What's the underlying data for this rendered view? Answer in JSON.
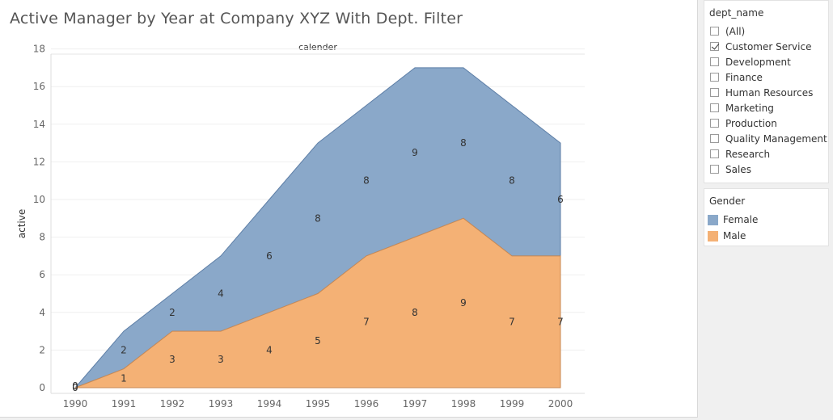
{
  "title": "Active Manager by Year at Company XYZ With Dept. Filter",
  "colors": {
    "female": "#8aa8c9",
    "female_line": "#5d7ea6",
    "male": "#f4b175",
    "male_line": "#c98a55"
  },
  "chart_data": {
    "type": "area",
    "stacked": true,
    "top_label": "calender",
    "ylabel": "active",
    "xlabel": "",
    "ylim": [
      0,
      18
    ],
    "yticks": [
      0,
      2,
      4,
      6,
      8,
      10,
      12,
      14,
      16,
      18
    ],
    "x": [
      1990,
      1991,
      1992,
      1993,
      1994,
      1995,
      1996,
      1997,
      1998,
      1999,
      2000
    ],
    "series": [
      {
        "name": "Male",
        "values": [
          0,
          1,
          3,
          3,
          4,
          5,
          7,
          8,
          9,
          7,
          7
        ]
      },
      {
        "name": "Female",
        "values": [
          0,
          2,
          2,
          4,
          6,
          8,
          8,
          9,
          8,
          8,
          6
        ]
      }
    ],
    "grid": true
  },
  "filter": {
    "title": "dept_name",
    "options": [
      {
        "label": "(All)",
        "checked": false
      },
      {
        "label": "Customer Service",
        "checked": true
      },
      {
        "label": "Development",
        "checked": false
      },
      {
        "label": "Finance",
        "checked": false
      },
      {
        "label": "Human Resources",
        "checked": false
      },
      {
        "label": "Marketing",
        "checked": false
      },
      {
        "label": "Production",
        "checked": false
      },
      {
        "label": "Quality Management",
        "checked": false
      },
      {
        "label": "Research",
        "checked": false
      },
      {
        "label": "Sales",
        "checked": false
      }
    ]
  },
  "legend": {
    "title": "Gender",
    "items": [
      {
        "label": "Female",
        "color": "#8aa8c9"
      },
      {
        "label": "Male",
        "color": "#f4b175"
      }
    ]
  }
}
